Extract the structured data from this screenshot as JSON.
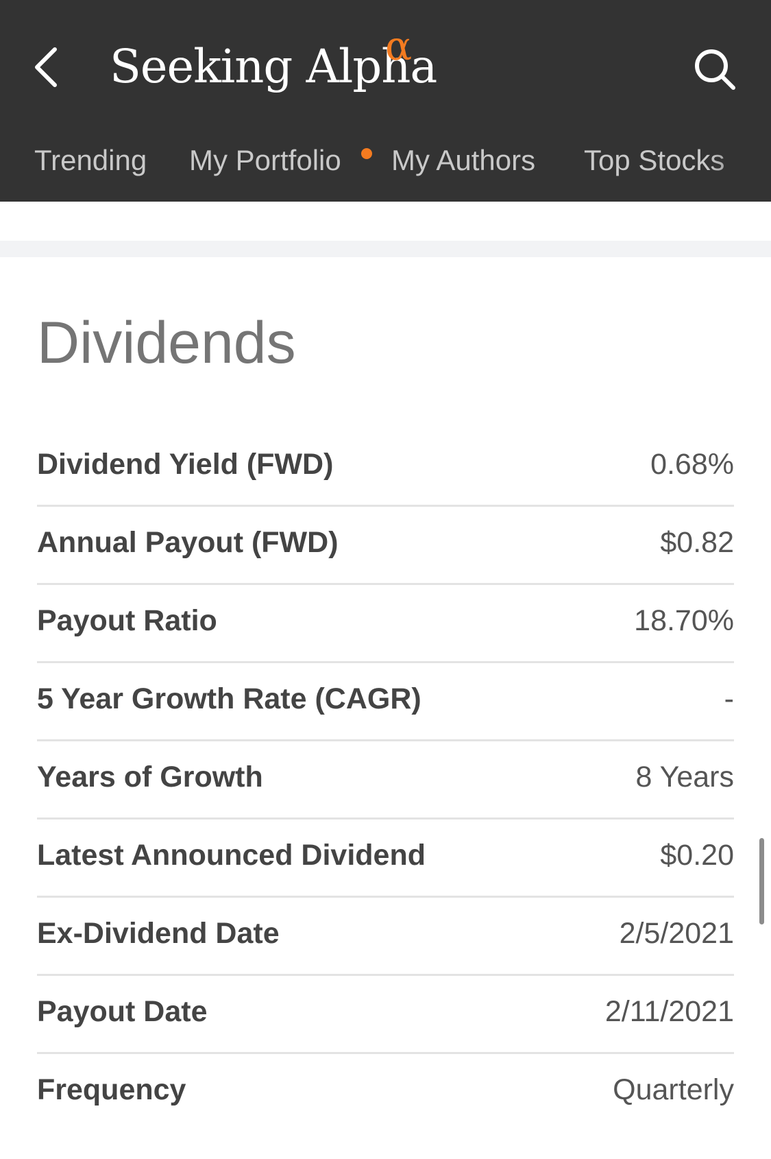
{
  "header": {
    "brand": "Seeking Alpha",
    "brand_mark": "α",
    "back_icon": "chevron-left-icon",
    "search_icon": "search-icon",
    "accent_color": "#f47b20",
    "background_color": "#333333"
  },
  "tabs": [
    {
      "label": "Trending"
    },
    {
      "label": "My Portfolio",
      "has_notification": true
    },
    {
      "label": "My Authors"
    },
    {
      "label": "Top Stocks"
    }
  ],
  "section": {
    "title": "Dividends"
  },
  "rows": [
    {
      "label": "Dividend Yield (FWD)",
      "value": "0.68%"
    },
    {
      "label": "Annual Payout (FWD)",
      "value": "$0.82"
    },
    {
      "label": "Payout Ratio",
      "value": "18.70%"
    },
    {
      "label": "5 Year Growth Rate (CAGR)",
      "value": "-"
    },
    {
      "label": "Years of Growth",
      "value": "8 Years"
    },
    {
      "label": "Latest Announced Dividend",
      "value": "$0.20"
    },
    {
      "label": "Ex-Dividend Date",
      "value": "2/5/2021"
    },
    {
      "label": "Payout Date",
      "value": "2/11/2021"
    },
    {
      "label": "Frequency",
      "value": "Quarterly"
    }
  ]
}
